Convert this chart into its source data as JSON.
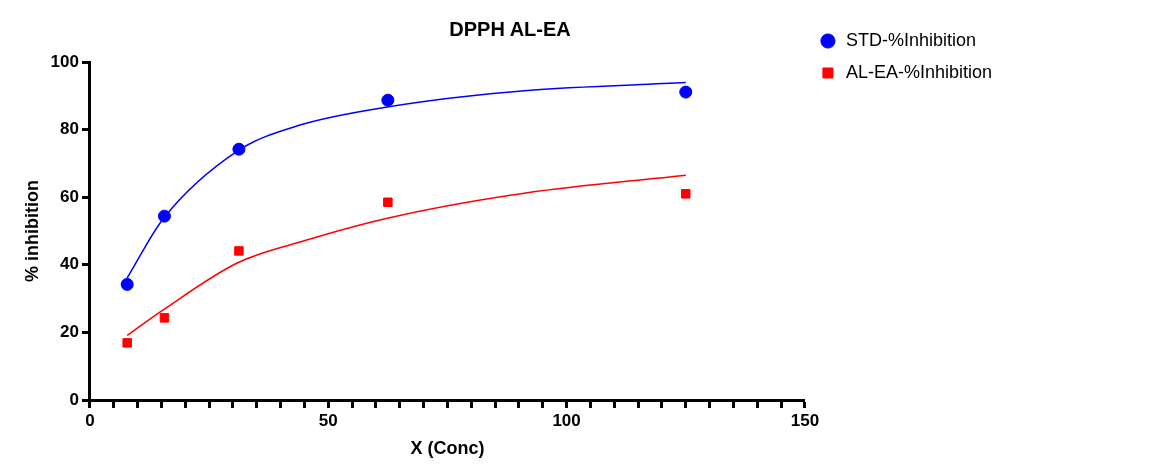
{
  "chart_data": {
    "type": "scatter",
    "title": "DPPH AL-EA",
    "xlabel": "X (Conc)",
    "ylabel": "% inhibition",
    "xlim": [
      0,
      150
    ],
    "xticks": [
      0,
      {
        "value": 5,
        "label": null
      },
      {
        "value": 10,
        "label": null
      },
      {
        "value": 15,
        "label": null
      },
      {
        "value": 20,
        "label": null
      },
      {
        "value": 25,
        "label": null
      },
      {
        "value": 30,
        "label": null
      },
      {
        "value": 35,
        "label": null
      },
      {
        "value": 40,
        "label": null
      },
      {
        "value": 45,
        "label": null
      },
      50,
      {
        "value": 55,
        "label": null
      },
      {
        "value": 60,
        "label": null
      },
      {
        "value": 65,
        "label": null
      },
      {
        "value": 70,
        "label": null
      },
      {
        "value": 75,
        "label": null
      },
      {
        "value": 80,
        "label": null
      },
      {
        "value": 85,
        "label": null
      },
      {
        "value": 90,
        "label": null
      },
      {
        "value": 95,
        "label": null
      },
      100,
      {
        "value": 105,
        "label": null
      },
      {
        "value": 110,
        "label": null
      },
      {
        "value": 115,
        "label": null
      },
      {
        "value": 120,
        "label": null
      },
      {
        "value": 125,
        "label": null
      },
      {
        "value": 130,
        "label": null
      },
      {
        "value": 135,
        "label": null
      },
      {
        "value": 140,
        "label": null
      },
      {
        "value": 145,
        "label": null
      },
      150
    ],
    "ylim": [
      0,
      100
    ],
    "yticks": [
      0,
      20,
      40,
      60,
      80,
      100
    ],
    "grid": false,
    "legend": "top right",
    "series": [
      {
        "name": "STD-%Inhibition",
        "type": "scatter",
        "marker": "circle",
        "color": "#0000ff",
        "x": [
          7.8125,
          15.625,
          31.25,
          62.5,
          125
        ],
        "values": [
          34.2,
          54.4,
          74.2,
          88.7,
          91.1
        ]
      },
      {
        "name": "AL-EA-%Inhibition",
        "type": "scatter",
        "marker": "square",
        "color": "#ff0000",
        "x": [
          7.8125,
          15.625,
          31.25,
          62.5,
          125
        ],
        "values": [
          16.9,
          24.3,
          44.1,
          58.5,
          61.0
        ]
      },
      {
        "type": "line",
        "marker": "none",
        "line_style": "solid",
        "color": "#0000ff",
        "x": [
          7.8,
          15.3,
          31,
          43.7,
          62.4,
          91.1,
          125
        ],
        "values": [
          36.1,
          53.5,
          73.7,
          81.2,
          86.7,
          91.5,
          93.9
        ]
      },
      {
        "type": "line",
        "marker": "none",
        "line_style": "solid",
        "color": "#ff0000",
        "x": [
          7.8,
          15.3,
          31,
          43.7,
          62.4,
          91.1,
          125
        ],
        "values": [
          19.1,
          26.6,
          40.6,
          46.6,
          53.8,
          61.2,
          66.5
        ]
      }
    ]
  }
}
